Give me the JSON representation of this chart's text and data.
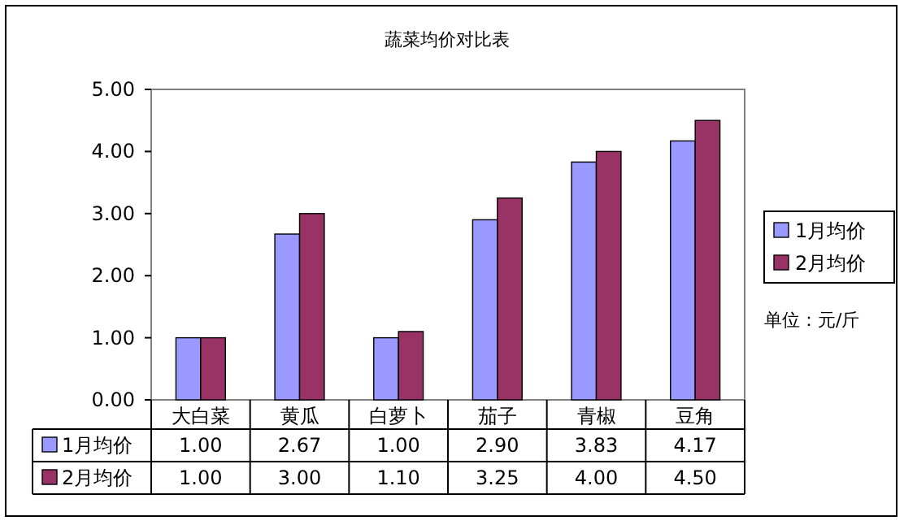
{
  "chart_data": {
    "type": "bar",
    "title": "蔬菜均价对比表",
    "categories": [
      "大白菜",
      "黄瓜",
      "白萝卜",
      "茄子",
      "青椒",
      "豆角"
    ],
    "series": [
      {
        "name": "1月均价",
        "color": "#9999ff",
        "values": [
          1.0,
          2.67,
          1.0,
          2.9,
          3.83,
          4.17
        ],
        "value_labels": [
          "1.00",
          "2.67",
          "1.00",
          "2.90",
          "3.83",
          "4.17"
        ]
      },
      {
        "name": "2月均价",
        "color": "#993366",
        "values": [
          1.0,
          3.0,
          1.1,
          3.25,
          4.0,
          4.5
        ],
        "value_labels": [
          "1.00",
          "3.00",
          "1.10",
          "3.25",
          "4.00",
          "4.50"
        ]
      }
    ],
    "ylim": [
      0,
      5
    ],
    "yticks": [
      {
        "value": 0,
        "label": "0.00"
      },
      {
        "value": 1,
        "label": "1.00"
      },
      {
        "value": 2,
        "label": "2.00"
      },
      {
        "value": 3,
        "label": "3.00"
      },
      {
        "value": 4,
        "label": "4.00"
      },
      {
        "value": 5,
        "label": "5.00"
      }
    ],
    "legend": "right",
    "annotations": [
      "单位：元/斤"
    ]
  }
}
